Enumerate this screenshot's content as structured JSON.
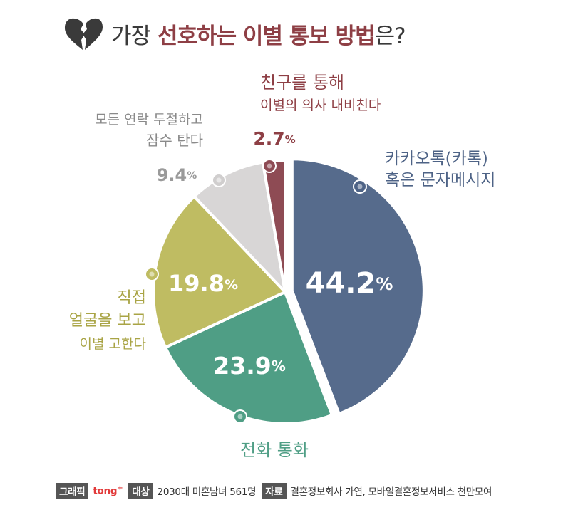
{
  "title": {
    "prefix": "가장",
    "highlight": "선호하는 이별 통보 방법",
    "suffix": "은?"
  },
  "chart_data": {
    "type": "pie",
    "slices": [
      {
        "label_lines": [
          "카카오톡(카톡)",
          "혹은 문자메시지"
        ],
        "value": 44.2,
        "value_label": "44.2",
        "color": "#566b8c"
      },
      {
        "label_lines": [
          "전화 통화"
        ],
        "value": 23.9,
        "value_label": "23.9",
        "color": "#4f9e85"
      },
      {
        "label_lines": [
          "직접",
          "얼굴을 보고",
          "이별 고한다"
        ],
        "value": 19.8,
        "value_label": "19.8",
        "color": "#bfbc62"
      },
      {
        "label_lines": [
          "모든 연락 두절하고",
          "잠수 탄다"
        ],
        "value": 9.4,
        "value_label": "9.4",
        "color": "#d8d6d6"
      },
      {
        "label_lines": [
          "친구를 통해",
          "이별의 의사 내비친다"
        ],
        "value": 2.7,
        "value_label": "2.7",
        "color": "#8e4b54"
      }
    ],
    "unit": "%"
  },
  "footer": {
    "graphic_tag": "그래픽",
    "brand": "tong",
    "brand_sup": "+",
    "target_tag": "대상",
    "target": "2030대 미혼남녀 561명",
    "source_tag": "자료",
    "source": "결혼정보회사 가연, 모바일결혼정보서비스 천만모여"
  }
}
